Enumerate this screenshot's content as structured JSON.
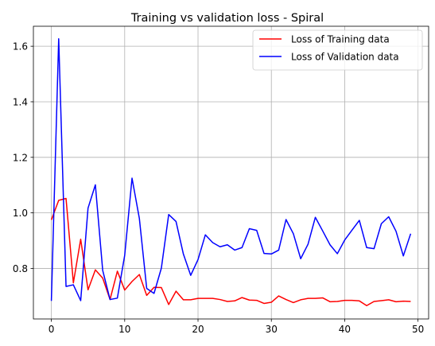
{
  "chart_data": {
    "type": "line",
    "title": "Training vs validation loss - Spiral",
    "xlabel": "",
    "ylabel": "",
    "xlim": [
      -2.45,
      51.45
    ],
    "ylim": [
      0.618,
      1.672
    ],
    "xticks": [
      0,
      10,
      20,
      30,
      40,
      50
    ],
    "yticks": [
      0.8,
      1.0,
      1.2,
      1.4,
      1.6
    ],
    "xtick_labels": [
      "0",
      "10",
      "20",
      "30",
      "40",
      "50"
    ],
    "ytick_labels": [
      "0.8",
      "1.0",
      "1.2",
      "1.4",
      "1.6"
    ],
    "grid": true,
    "legend_position": "top-right",
    "x": [
      0,
      1,
      2,
      3,
      4,
      5,
      6,
      7,
      8,
      9,
      10,
      11,
      12,
      13,
      14,
      15,
      16,
      17,
      18,
      19,
      20,
      21,
      22,
      23,
      24,
      25,
      26,
      27,
      28,
      29,
      30,
      31,
      32,
      33,
      34,
      35,
      36,
      37,
      38,
      39,
      40,
      41,
      42,
      43,
      44,
      45,
      46,
      47,
      48,
      49
    ],
    "series": [
      {
        "name": "Loss of Training data",
        "color": "#ff0000",
        "values": [
          0.975,
          1.045,
          1.052,
          0.748,
          0.905,
          0.723,
          0.795,
          0.765,
          0.688,
          0.79,
          0.722,
          0.753,
          0.778,
          0.703,
          0.732,
          0.731,
          0.67,
          0.718,
          0.687,
          0.687,
          0.692,
          0.692,
          0.692,
          0.688,
          0.681,
          0.683,
          0.695,
          0.686,
          0.685,
          0.674,
          0.678,
          0.701,
          0.688,
          0.677,
          0.687,
          0.692,
          0.692,
          0.694,
          0.68,
          0.681,
          0.685,
          0.685,
          0.683,
          0.666,
          0.681,
          0.684,
          0.687,
          0.68,
          0.682,
          0.681
        ]
      },
      {
        "name": "Loss of Validation data",
        "color": "#0000ff",
        "values": [
          0.683,
          1.627,
          0.735,
          0.741,
          0.684,
          1.017,
          1.101,
          0.793,
          0.688,
          0.693,
          0.847,
          1.125,
          0.98,
          0.728,
          0.71,
          0.801,
          0.994,
          0.969,
          0.852,
          0.775,
          0.832,
          0.921,
          0.893,
          0.878,
          0.885,
          0.866,
          0.875,
          0.943,
          0.937,
          0.854,
          0.852,
          0.866,
          0.976,
          0.925,
          0.835,
          0.887,
          0.984,
          0.935,
          0.885,
          0.853,
          0.902,
          0.938,
          0.973,
          0.875,
          0.871,
          0.961,
          0.986,
          0.934,
          0.845,
          0.925
        ]
      }
    ]
  }
}
